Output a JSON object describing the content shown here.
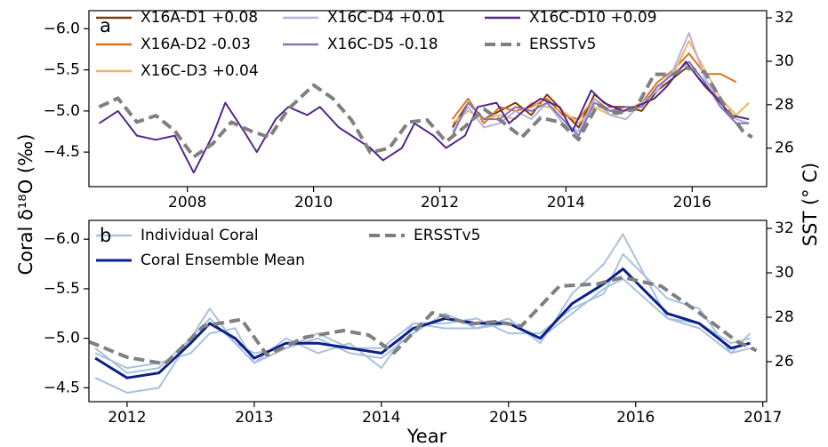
{
  "chart_data": [
    {
      "type": "line",
      "panel_label": "a",
      "y_label": "Coral δ¹⁸O (‰)",
      "y2_label": "SST (° C)",
      "xlim": [
        2006.44,
        2017.18
      ],
      "xticks": [
        2008,
        2010,
        2012,
        2014,
        2016
      ],
      "ylim": [
        -4.08,
        -6.22
      ],
      "yticks": [
        {
          "value": -6.0,
          "label": "−6.0"
        },
        {
          "value": -5.5,
          "label": "−5.5"
        },
        {
          "value": -5.0,
          "label": "−5.0"
        },
        {
          "value": -4.5,
          "label": "−4.5"
        }
      ],
      "y2lim": [
        24.23,
        32.33
      ],
      "y2ticks": [
        26,
        28,
        30,
        32
      ],
      "series": [
        {
          "name": "X16A-D1 +0.08",
          "color": "#7f3b08",
          "x": [
            2012.2,
            2012.45,
            2012.7,
            2012.95,
            2013.2,
            2013.45,
            2013.7,
            2013.95,
            2014.2,
            2014.45,
            2014.7,
            2014.95,
            2015.2,
            2015.45,
            2015.7,
            2015.95,
            2016.2,
            2016.45
          ],
          "values": [
            -4.8,
            -5.1,
            -4.9,
            -5.0,
            -5.1,
            -4.95,
            -5.2,
            -5.0,
            -4.8,
            -5.2,
            -5.05,
            -5.05,
            -5.0,
            -5.25,
            -5.4,
            -5.55,
            -5.3,
            -5.1
          ]
        },
        {
          "name": "X16A-D2 -0.03",
          "color": "#d9771b",
          "x": [
            2012.2,
            2012.45,
            2012.7,
            2012.95,
            2013.2,
            2013.45,
            2013.7,
            2013.95,
            2014.2,
            2014.45,
            2014.7,
            2014.95,
            2015.2,
            2015.45,
            2015.7,
            2015.95,
            2016.2,
            2016.45,
            2016.7
          ],
          "values": [
            -4.9,
            -5.15,
            -4.85,
            -5.05,
            -5.0,
            -5.05,
            -5.15,
            -4.95,
            -4.9,
            -5.15,
            -5.0,
            -5.0,
            -5.1,
            -5.35,
            -5.5,
            -5.7,
            -5.45,
            -5.45,
            -5.35
          ]
        },
        {
          "name": "X16C-D3 +0.04",
          "color": "#f5b460",
          "x": [
            2012.2,
            2012.45,
            2012.7,
            2012.95,
            2013.2,
            2013.45,
            2013.7,
            2013.95,
            2014.2,
            2014.45,
            2014.7,
            2014.95,
            2015.2,
            2015.45,
            2015.7,
            2015.95,
            2016.2,
            2016.45,
            2016.7,
            2016.9
          ],
          "values": [
            -4.85,
            -5.0,
            -4.9,
            -4.95,
            -4.9,
            -5.1,
            -5.05,
            -5.0,
            -4.85,
            -5.05,
            -4.95,
            -5.0,
            -5.05,
            -5.3,
            -5.45,
            -5.85,
            -5.5,
            -5.15,
            -4.95,
            -5.1
          ]
        },
        {
          "name": "X16C-D4 +0.01",
          "color": "#b8b2de",
          "x": [
            2012.2,
            2012.45,
            2012.7,
            2012.95,
            2013.2,
            2013.45,
            2013.7,
            2013.95,
            2014.2,
            2014.45,
            2014.7,
            2014.95,
            2015.2,
            2015.45,
            2015.7,
            2015.95,
            2016.2,
            2016.45,
            2016.7,
            2016.9
          ],
          "values": [
            -4.75,
            -5.05,
            -4.8,
            -4.85,
            -5.0,
            -4.9,
            -5.1,
            -4.85,
            -4.75,
            -5.15,
            -4.95,
            -4.9,
            -5.1,
            -5.25,
            -5.5,
            -5.95,
            -5.4,
            -5.1,
            -4.9,
            -4.85
          ]
        },
        {
          "name": "X16C-D5 -0.18",
          "color": "#8276b8",
          "x": [
            2012.2,
            2012.45,
            2012.7,
            2012.95,
            2013.2,
            2013.45,
            2013.7,
            2013.95,
            2014.2,
            2014.45,
            2014.7,
            2014.95,
            2015.2,
            2015.45,
            2015.7,
            2015.95,
            2016.2,
            2016.45,
            2016.7,
            2016.9
          ],
          "values": [
            -4.7,
            -5.1,
            -4.9,
            -4.9,
            -5.05,
            -5.0,
            -5.1,
            -4.9,
            -4.7,
            -5.1,
            -5.0,
            -5.05,
            -5.05,
            -5.3,
            -5.45,
            -5.6,
            -5.35,
            -5.05,
            -4.85,
            -4.85
          ]
        },
        {
          "name": "X16C-D10 +0.09",
          "color": "#542788",
          "x": [
            2006.6,
            2006.9,
            2007.2,
            2007.5,
            2007.8,
            2008.0,
            2008.1,
            2008.4,
            2008.6,
            2008.9,
            2009.1,
            2009.4,
            2009.6,
            2009.9,
            2010.1,
            2010.4,
            2010.6,
            2010.9,
            2011.1,
            2011.4,
            2011.6,
            2011.9,
            2012.1,
            2012.4,
            2012.6,
            2012.9,
            2013.1,
            2013.4,
            2013.6,
            2013.9,
            2014.1,
            2014.4,
            2014.6,
            2014.9,
            2015.1,
            2015.4,
            2015.6,
            2015.9,
            2016.1,
            2016.4,
            2016.6,
            2016.9
          ],
          "values": [
            -4.85,
            -5.0,
            -4.7,
            -4.65,
            -4.7,
            -4.4,
            -4.25,
            -4.7,
            -5.1,
            -4.75,
            -4.5,
            -4.9,
            -5.05,
            -4.95,
            -5.05,
            -4.8,
            -4.7,
            -4.55,
            -4.4,
            -4.55,
            -4.85,
            -4.7,
            -4.55,
            -4.7,
            -5.05,
            -5.1,
            -4.85,
            -5.05,
            -5.15,
            -5.05,
            -4.75,
            -5.25,
            -5.1,
            -5.0,
            -5.05,
            -5.15,
            -5.3,
            -5.6,
            -5.4,
            -5.15,
            -4.95,
            -4.9
          ]
        },
        {
          "name": "ERSSTv5",
          "color": "#808080",
          "linestyle": "dashed",
          "axis": "y2",
          "x": [
            2006.6,
            2006.9,
            2007.2,
            2007.5,
            2007.8,
            2008.1,
            2008.4,
            2008.7,
            2009.0,
            2009.3,
            2009.6,
            2010.0,
            2010.3,
            2010.6,
            2010.9,
            2011.2,
            2011.5,
            2011.8,
            2012.1,
            2012.4,
            2012.7,
            2013.0,
            2013.3,
            2013.6,
            2013.9,
            2014.2,
            2014.5,
            2014.8,
            2015.1,
            2015.4,
            2015.7,
            2015.9,
            2016.2,
            2016.5,
            2016.8,
            2016.95
          ],
          "values": [
            27.9,
            28.3,
            27.2,
            27.5,
            26.8,
            25.6,
            26.2,
            27.2,
            26.8,
            26.5,
            27.8,
            28.9,
            28.3,
            27.3,
            25.8,
            26.0,
            27.2,
            27.3,
            26.3,
            27.0,
            27.8,
            27.2,
            26.5,
            27.4,
            27.2,
            26.4,
            28.0,
            27.6,
            27.8,
            29.4,
            29.4,
            29.7,
            29.5,
            28.0,
            26.8,
            26.5
          ]
        }
      ]
    },
    {
      "type": "line",
      "panel_label": "b",
      "x_label": "Year",
      "xlim": [
        2011.7,
        2017.03
      ],
      "xticks": [
        2012,
        2013,
        2014,
        2015,
        2016,
        2017
      ],
      "ylim": [
        -4.36,
        -6.19
      ],
      "yticks": [
        {
          "value": -6.0,
          "label": "−6.0"
        },
        {
          "value": -5.5,
          "label": "−5.5"
        },
        {
          "value": -5.0,
          "label": "−5.0"
        },
        {
          "value": -4.5,
          "label": "−4.5"
        }
      ],
      "y2lim": [
        24.2,
        32.36
      ],
      "y2ticks": [
        26,
        28,
        30,
        32
      ],
      "series": [
        {
          "name": "Individual Coral",
          "color": "#a9c1df",
          "x": [
            2011.75,
            2012.0,
            2012.25,
            2012.5,
            2012.65,
            2012.85,
            2013.0,
            2013.25,
            2013.5,
            2013.75,
            2014.0,
            2014.25,
            2014.5,
            2014.75,
            2015.0,
            2015.25,
            2015.5,
            2015.75,
            2015.9,
            2016.25,
            2016.5,
            2016.75,
            2016.9
          ],
          "values": [
            -4.6,
            -4.45,
            -4.5,
            -5.0,
            -5.3,
            -4.95,
            -4.75,
            -4.9,
            -5.0,
            -4.85,
            -4.8,
            -5.05,
            -5.25,
            -5.1,
            -5.2,
            -4.95,
            -5.45,
            -5.75,
            -6.05,
            -5.2,
            -5.1,
            -4.85,
            -5.05
          ]
        },
        {
          "color": "#a9c1df",
          "x": [
            2011.75,
            2012.0,
            2012.25,
            2012.5,
            2012.65,
            2012.85,
            2013.0,
            2013.25,
            2013.5,
            2013.75,
            2014.0,
            2014.25,
            2014.5,
            2014.75,
            2015.0,
            2015.25,
            2015.5,
            2015.75,
            2015.9,
            2016.25,
            2016.5,
            2016.75,
            2016.9
          ],
          "values": [
            -4.85,
            -4.7,
            -4.75,
            -4.85,
            -5.05,
            -5.1,
            -4.75,
            -5.0,
            -4.85,
            -4.95,
            -4.7,
            -5.15,
            -5.15,
            -5.2,
            -5.05,
            -5.05,
            -5.3,
            -5.45,
            -5.85,
            -5.4,
            -5.3,
            -4.85,
            -4.9
          ]
        },
        {
          "color": "#a9c1df",
          "x": [
            2011.75,
            2012.0,
            2012.25,
            2012.5,
            2012.65,
            2012.85,
            2013.0,
            2013.25,
            2013.5,
            2013.75,
            2014.0,
            2014.25,
            2014.5,
            2014.75,
            2015.0,
            2015.25,
            2015.5,
            2015.75,
            2015.9,
            2016.25,
            2016.5,
            2016.75,
            2016.9
          ],
          "values": [
            -4.9,
            -4.65,
            -4.7,
            -5.0,
            -5.2,
            -4.95,
            -4.85,
            -4.9,
            -5.05,
            -4.9,
            -4.9,
            -5.15,
            -5.1,
            -5.1,
            -5.15,
            -5.0,
            -5.25,
            -5.5,
            -5.6,
            -5.2,
            -5.15,
            -4.95,
            -5.0
          ]
        },
        {
          "name": "Coral Ensemble Mean",
          "color": "#0b1f8a",
          "width": 3,
          "x": [
            2011.75,
            2012.0,
            2012.25,
            2012.5,
            2012.65,
            2012.85,
            2013.0,
            2013.25,
            2013.5,
            2013.75,
            2014.0,
            2014.25,
            2014.5,
            2014.75,
            2015.0,
            2015.25,
            2015.5,
            2015.75,
            2015.9,
            2016.25,
            2016.5,
            2016.75,
            2016.9
          ],
          "values": [
            -4.8,
            -4.6,
            -4.65,
            -4.95,
            -5.15,
            -5.0,
            -4.8,
            -4.95,
            -4.95,
            -4.9,
            -4.85,
            -5.1,
            -5.2,
            -5.15,
            -5.15,
            -5.0,
            -5.35,
            -5.55,
            -5.7,
            -5.25,
            -5.15,
            -4.9,
            -4.95
          ]
        },
        {
          "name": "ERSSTv5",
          "color": "#808080",
          "linestyle": "dashed",
          "axis": "y2",
          "x": [
            2011.7,
            2012.0,
            2012.3,
            2012.6,
            2012.9,
            2013.1,
            2013.4,
            2013.7,
            2013.9,
            2014.1,
            2014.4,
            2014.7,
            2014.9,
            2015.1,
            2015.4,
            2015.7,
            2015.9,
            2016.2,
            2016.5,
            2016.8,
            2016.95
          ],
          "values": [
            26.9,
            26.2,
            25.9,
            27.6,
            27.9,
            26.3,
            27.1,
            27.4,
            27.2,
            26.4,
            28.2,
            27.7,
            27.8,
            27.6,
            29.4,
            29.5,
            29.8,
            29.4,
            28.2,
            26.9,
            26.5
          ]
        }
      ]
    }
  ]
}
